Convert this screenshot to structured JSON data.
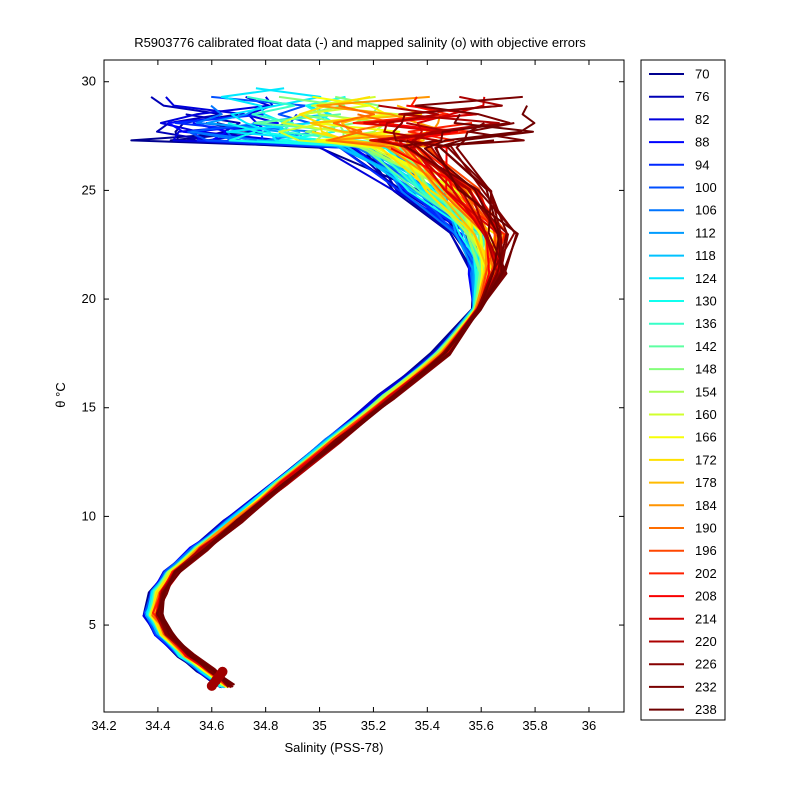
{
  "chart_data": {
    "type": "line",
    "title": "R5903776 calibrated float data (-) and mapped salinity (o) with objective errors",
    "xlabel": "Salinity (PSS-78)",
    "ylabel": "θ °C",
    "xlim": [
      34.2,
      36.13
    ],
    "ylim": [
      1,
      31
    ],
    "x_ticks": [
      "34.2",
      "34.4",
      "34.6",
      "34.8",
      "35",
      "35.2",
      "35.4",
      "35.6",
      "35.8",
      "36"
    ],
    "y_ticks": [
      "5",
      "10",
      "15",
      "20",
      "25",
      "30"
    ],
    "grid": false,
    "legend_position": "right",
    "legend": [
      "70",
      "76",
      "82",
      "88",
      "94",
      "100",
      "106",
      "112",
      "118",
      "124",
      "130",
      "136",
      "142",
      "148",
      "154",
      "160",
      "166",
      "172",
      "178",
      "184",
      "190",
      "196",
      "202",
      "208",
      "214",
      "220",
      "226",
      "232",
      "238"
    ],
    "series_colors": [
      "#00008f",
      "#0000b6",
      "#0000dc",
      "#0002ff",
      "#0028ff",
      "#004fff",
      "#0075ff",
      "#009cff",
      "#00c2ff",
      "#00e9ff",
      "#10ffef",
      "#37ffc8",
      "#5dffa2",
      "#84ff7b",
      "#aaff55",
      "#d1ff2e",
      "#f7ff08",
      "#ffe100",
      "#ffbb00",
      "#ff9400",
      "#ff6d00",
      "#ff4700",
      "#ff2000",
      "#f90000",
      "#d30000",
      "#ac0000",
      "#860000",
      "#7a0000",
      "#6f0000"
    ],
    "mean_profile": {
      "salinity": [
        34.65,
        34.58,
        34.5,
        34.42,
        34.38,
        34.4,
        34.45,
        34.55,
        34.68,
        34.85,
        35.05,
        35.25,
        35.45,
        35.58,
        35.62,
        35.6,
        35.45,
        35.25
      ],
      "theta": [
        2.2,
        2.9,
        3.6,
        4.6,
        5.5,
        6.5,
        7.4,
        8.5,
        9.8,
        11.5,
        13.5,
        15.5,
        17.5,
        19.5,
        21.2,
        23.0,
        25.0,
        27.0
      ]
    }
  }
}
